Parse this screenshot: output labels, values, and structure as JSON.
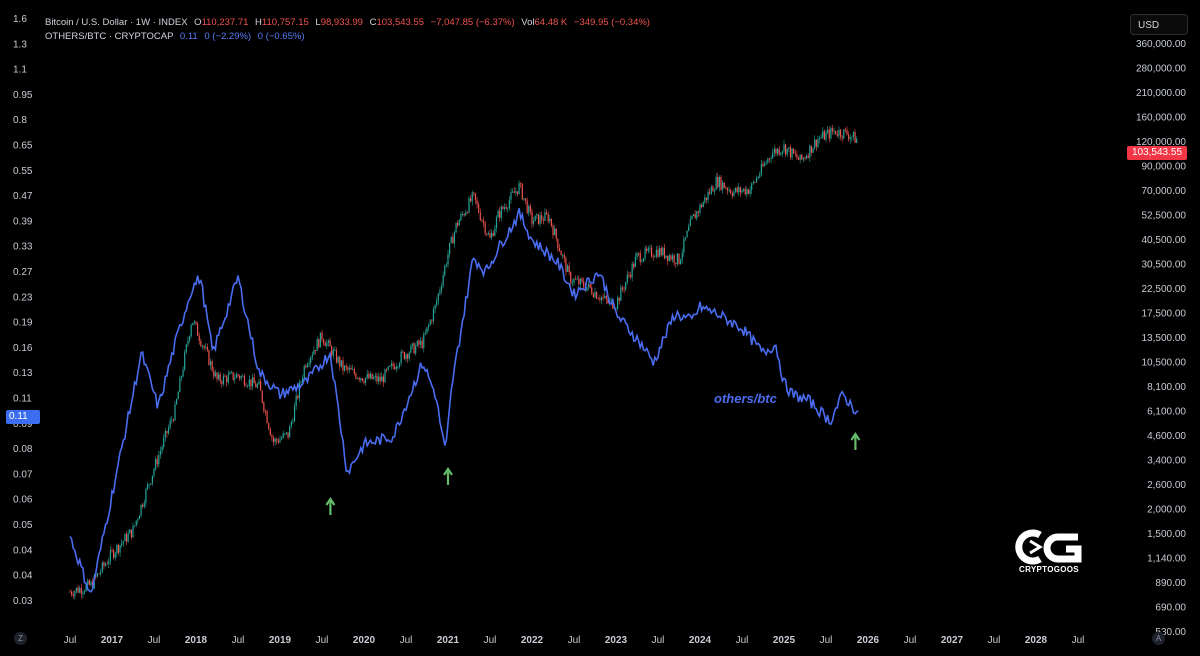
{
  "legend": {
    "main_title": "Bitcoin / U.S. Dollar · 1W · INDEX",
    "o_label": "O",
    "o_value": "110,237.71",
    "h_label": "H",
    "h_value": "110,757.15",
    "l_label": "L",
    "l_value": "98,933.99",
    "c_label": "C",
    "c_value": "103,543.55",
    "change": "−7,047.85 (−6.37%)",
    "vol_label": "Vol",
    "vol_value": "64.48 K",
    "vol_change": "−349.95 (−0.34%)",
    "second_title": "OTHERS/BTC · CRYPTOCAP",
    "second_value": "0.11",
    "second_change1": "0 (−2.29%)",
    "second_change2": "0 (−0.65%)"
  },
  "currency_button": "USD",
  "price_badge": "103,543.55",
  "others_badge": "0.11",
  "annotation": "others/btc",
  "logo_text": "CRYPTOGOOS",
  "axis_buttons": {
    "left": "Z",
    "right": "A"
  },
  "colors": {
    "up_candle": "#26a69a",
    "down_candle": "#ef5350",
    "others_line": "#4a6cf0",
    "arrow": "#66bb6a",
    "badge_red": "#f23645",
    "badge_blue": "#3a6df0"
  },
  "chart_data": {
    "type": "line",
    "x_axis_ticks": [
      "Jul",
      "2017",
      "Jul",
      "2018",
      "Jul",
      "2019",
      "Jul",
      "2020",
      "Jul",
      "2021",
      "Jul",
      "2022",
      "Jul",
      "2023",
      "Jul",
      "2024",
      "Jul",
      "2025",
      "Jul",
      "2026",
      "Jul",
      "2027",
      "Jul",
      "2028",
      "Jul"
    ],
    "left_axis": {
      "scale": "log",
      "ticks": [
        "1.6",
        "1.3",
        "1.1",
        "0.95",
        "0.8",
        "0.65",
        "0.55",
        "0.47",
        "0.39",
        "0.33",
        "0.27",
        "0.23",
        "0.19",
        "0.16",
        "0.13",
        "0.11",
        "0.09",
        "0.08",
        "0.07",
        "0.06",
        "0.05",
        "0.04",
        "0.04",
        "0.03"
      ]
    },
    "right_axis": {
      "scale": "log",
      "ticks": [
        "360,000.00",
        "280,000.00",
        "210,000.00",
        "160,000.00",
        "120,000.00",
        "90,000.00",
        "70,000.00",
        "52,500.00",
        "40,500.00",
        "30,500.00",
        "22,500.00",
        "17,500.00",
        "13,500.00",
        "10,500.00",
        "8,100.00",
        "6,100.00",
        "4,600.00",
        "3,400.00",
        "2,600.00",
        "2,000.00",
        "1,500.00",
        "1,140.00",
        "890.00",
        "690.00",
        "530.00"
      ]
    },
    "series": [
      {
        "name": "Bitcoin / U.S. Dollar",
        "style": "candles",
        "x": [
          2016.5,
          2016.75,
          2017.0,
          2017.25,
          2017.5,
          2017.75,
          2017.95,
          2018.1,
          2018.25,
          2018.5,
          2018.75,
          2018.92,
          2019.1,
          2019.3,
          2019.5,
          2019.75,
          2020.0,
          2020.2,
          2020.45,
          2020.7,
          2020.85,
          2021.0,
          2021.1,
          2021.3,
          2021.5,
          2021.6,
          2021.85,
          2022.0,
          2022.2,
          2022.45,
          2022.7,
          2022.9,
          2023.0,
          2023.25,
          2023.5,
          2023.75,
          2023.9,
          2024.2,
          2024.4,
          2024.6,
          2024.85,
          2025.0,
          2025.2,
          2025.4,
          2025.6,
          2025.75,
          2025.88
        ],
        "y": [
          650,
          700,
          1000,
          1300,
          2600,
          5000,
          14000,
          10000,
          7000,
          7400,
          6500,
          3500,
          3800,
          8500,
          11500,
          8000,
          7200,
          7000,
          9200,
          10700,
          16000,
          29000,
          40000,
          55000,
          34000,
          45000,
          62000,
          42000,
          44000,
          22000,
          19500,
          16800,
          16600,
          28000,
          30000,
          27000,
          42000,
          66000,
          58000,
          60000,
          90000,
          96000,
          82000,
          105000,
          115000,
          112000,
          103543
        ]
      },
      {
        "name": "OTHERS/BTC",
        "style": "line",
        "x": [
          2016.5,
          2016.75,
          2017.0,
          2017.25,
          2017.35,
          2017.55,
          2017.75,
          2017.95,
          2018.05,
          2018.2,
          2018.5,
          2018.75,
          2019.0,
          2019.3,
          2019.6,
          2019.8,
          2020.0,
          2020.35,
          2020.7,
          2020.85,
          2020.97,
          2021.05,
          2021.3,
          2021.45,
          2021.6,
          2021.85,
          2022.0,
          2022.3,
          2022.5,
          2022.8,
          2023.0,
          2023.3,
          2023.45,
          2023.7,
          2023.9,
          2024.0,
          2024.2,
          2024.5,
          2024.75,
          2024.9,
          2025.0,
          2025.1,
          2025.3,
          2025.55,
          2025.7,
          2025.82,
          2025.9
        ],
        "y": [
          0.045,
          0.03,
          0.06,
          0.12,
          0.16,
          0.11,
          0.17,
          0.25,
          0.27,
          0.16,
          0.27,
          0.14,
          0.12,
          0.13,
          0.16,
          0.07,
          0.085,
          0.09,
          0.15,
          0.12,
          0.08,
          0.13,
          0.31,
          0.28,
          0.33,
          0.42,
          0.35,
          0.3,
          0.24,
          0.28,
          0.21,
          0.17,
          0.15,
          0.21,
          0.2,
          0.22,
          0.21,
          0.19,
          0.16,
          0.17,
          0.13,
          0.12,
          0.115,
          0.1,
          0.12,
          0.11,
          0.105
        ]
      }
    ],
    "arrows_at": [
      2019.6,
      2021.0,
      2025.85
    ],
    "grid": false
  }
}
